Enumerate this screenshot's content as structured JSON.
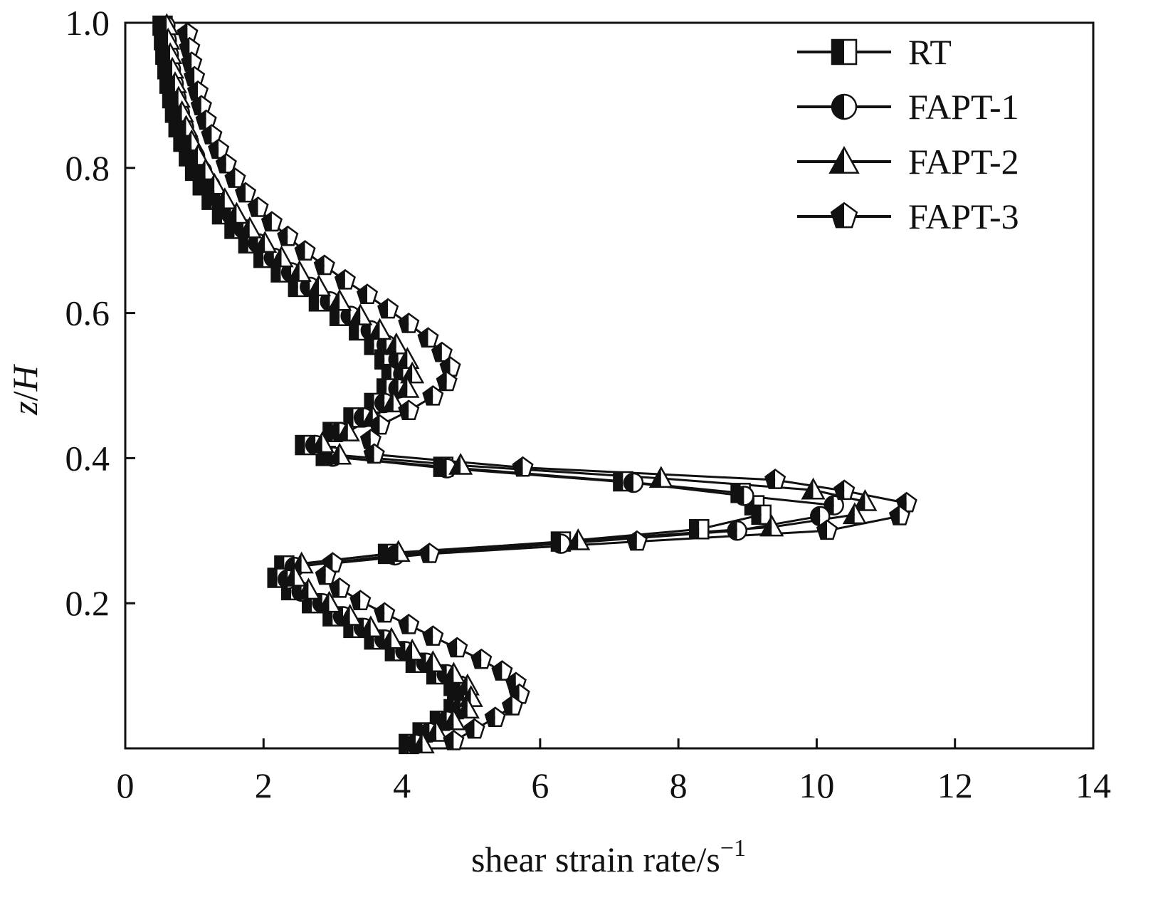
{
  "chart_data": {
    "type": "line",
    "title": "",
    "xlabel": "shear strain rate/s",
    "xlabel_superscript": "−1",
    "ylabel_italic_1": "z",
    "ylabel_sep": "/",
    "ylabel_italic_2": "H",
    "xlim": [
      0,
      14
    ],
    "ylim": [
      0,
      1.0
    ],
    "xticks": [
      0,
      2,
      4,
      6,
      8,
      10,
      12,
      14
    ],
    "xtick_labels": [
      "0",
      "2",
      "4",
      "6",
      "8",
      "10",
      "12",
      "14"
    ],
    "yticks": [
      0.2,
      0.4,
      0.6,
      0.8,
      1.0
    ],
    "ytick_labels": [
      "0.2",
      "0.4",
      "0.6",
      "0.8",
      "1.0"
    ],
    "grid": false,
    "legend_position": "top-right",
    "series": [
      {
        "name": "RT",
        "marker": "square",
        "points": [
          [
            0.54,
            0.996
          ],
          [
            0.56,
            0.976
          ],
          [
            0.58,
            0.956
          ],
          [
            0.61,
            0.936
          ],
          [
            0.64,
            0.916
          ],
          [
            0.68,
            0.896
          ],
          [
            0.72,
            0.876
          ],
          [
            0.77,
            0.856
          ],
          [
            0.84,
            0.836
          ],
          [
            0.92,
            0.816
          ],
          [
            1.01,
            0.796
          ],
          [
            1.12,
            0.776
          ],
          [
            1.25,
            0.756
          ],
          [
            1.4,
            0.736
          ],
          [
            1.58,
            0.716
          ],
          [
            1.78,
            0.696
          ],
          [
            2.0,
            0.676
          ],
          [
            2.25,
            0.656
          ],
          [
            2.5,
            0.636
          ],
          [
            2.8,
            0.616
          ],
          [
            3.1,
            0.596
          ],
          [
            3.38,
            0.576
          ],
          [
            3.6,
            0.556
          ],
          [
            3.75,
            0.536
          ],
          [
            3.85,
            0.516
          ],
          [
            3.78,
            0.496
          ],
          [
            3.6,
            0.476
          ],
          [
            3.3,
            0.456
          ],
          [
            3.0,
            0.436
          ],
          [
            2.6,
            0.418
          ],
          [
            2.9,
            0.403
          ],
          [
            4.6,
            0.388
          ],
          [
            7.2,
            0.368
          ],
          [
            8.9,
            0.352
          ],
          [
            9.1,
            0.335
          ],
          [
            9.2,
            0.322
          ],
          [
            8.3,
            0.302
          ],
          [
            6.3,
            0.285
          ],
          [
            3.8,
            0.268
          ],
          [
            2.3,
            0.252
          ],
          [
            2.2,
            0.235
          ],
          [
            2.4,
            0.218
          ],
          [
            2.7,
            0.2
          ],
          [
            3.0,
            0.182
          ],
          [
            3.3,
            0.166
          ],
          [
            3.6,
            0.15
          ],
          [
            3.9,
            0.134
          ],
          [
            4.2,
            0.118
          ],
          [
            4.5,
            0.102
          ],
          [
            4.75,
            0.086
          ],
          [
            4.8,
            0.07
          ],
          [
            4.75,
            0.054
          ],
          [
            4.55,
            0.038
          ],
          [
            4.3,
            0.022
          ],
          [
            4.1,
            0.006
          ]
        ]
      },
      {
        "name": "FAPT-1",
        "marker": "circle",
        "points": [
          [
            0.58,
            0.996
          ],
          [
            0.6,
            0.976
          ],
          [
            0.63,
            0.956
          ],
          [
            0.66,
            0.936
          ],
          [
            0.7,
            0.916
          ],
          [
            0.74,
            0.896
          ],
          [
            0.79,
            0.876
          ],
          [
            0.85,
            0.856
          ],
          [
            0.92,
            0.836
          ],
          [
            1.01,
            0.816
          ],
          [
            1.11,
            0.796
          ],
          [
            1.23,
            0.776
          ],
          [
            1.37,
            0.756
          ],
          [
            1.53,
            0.736
          ],
          [
            1.71,
            0.716
          ],
          [
            1.92,
            0.696
          ],
          [
            2.15,
            0.676
          ],
          [
            2.4,
            0.656
          ],
          [
            2.67,
            0.636
          ],
          [
            2.96,
            0.616
          ],
          [
            3.26,
            0.596
          ],
          [
            3.55,
            0.576
          ],
          [
            3.78,
            0.556
          ],
          [
            3.95,
            0.536
          ],
          [
            4.02,
            0.516
          ],
          [
            3.95,
            0.496
          ],
          [
            3.75,
            0.476
          ],
          [
            3.45,
            0.456
          ],
          [
            3.1,
            0.436
          ],
          [
            2.75,
            0.418
          ],
          [
            3.0,
            0.402
          ],
          [
            4.65,
            0.386
          ],
          [
            7.35,
            0.366
          ],
          [
            8.95,
            0.348
          ],
          [
            10.25,
            0.335
          ],
          [
            10.05,
            0.32
          ],
          [
            8.85,
            0.3
          ],
          [
            6.3,
            0.282
          ],
          [
            3.9,
            0.266
          ],
          [
            2.45,
            0.25
          ],
          [
            2.35,
            0.233
          ],
          [
            2.55,
            0.216
          ],
          [
            2.85,
            0.2
          ],
          [
            3.15,
            0.182
          ],
          [
            3.45,
            0.166
          ],
          [
            3.75,
            0.15
          ],
          [
            4.05,
            0.134
          ],
          [
            4.35,
            0.118
          ],
          [
            4.65,
            0.102
          ],
          [
            4.85,
            0.086
          ],
          [
            4.9,
            0.07
          ],
          [
            4.85,
            0.054
          ],
          [
            4.65,
            0.038
          ],
          [
            4.4,
            0.022
          ],
          [
            4.2,
            0.006
          ]
        ]
      },
      {
        "name": "FAPT-2",
        "marker": "triangle",
        "points": [
          [
            0.6,
            0.996
          ],
          [
            0.62,
            0.976
          ],
          [
            0.65,
            0.956
          ],
          [
            0.68,
            0.936
          ],
          [
            0.72,
            0.916
          ],
          [
            0.77,
            0.896
          ],
          [
            0.82,
            0.876
          ],
          [
            0.88,
            0.856
          ],
          [
            0.96,
            0.836
          ],
          [
            1.05,
            0.816
          ],
          [
            1.16,
            0.796
          ],
          [
            1.29,
            0.776
          ],
          [
            1.44,
            0.756
          ],
          [
            1.61,
            0.736
          ],
          [
            1.8,
            0.716
          ],
          [
            2.02,
            0.696
          ],
          [
            2.26,
            0.676
          ],
          [
            2.52,
            0.656
          ],
          [
            2.8,
            0.636
          ],
          [
            3.1,
            0.616
          ],
          [
            3.4,
            0.596
          ],
          [
            3.68,
            0.576
          ],
          [
            3.92,
            0.556
          ],
          [
            4.08,
            0.536
          ],
          [
            4.15,
            0.516
          ],
          [
            4.08,
            0.496
          ],
          [
            3.88,
            0.476
          ],
          [
            3.58,
            0.456
          ],
          [
            3.22,
            0.436
          ],
          [
            2.85,
            0.42
          ],
          [
            3.1,
            0.404
          ],
          [
            4.85,
            0.39
          ],
          [
            7.75,
            0.372
          ],
          [
            9.95,
            0.356
          ],
          [
            10.7,
            0.34
          ],
          [
            10.55,
            0.322
          ],
          [
            9.35,
            0.305
          ],
          [
            6.55,
            0.286
          ],
          [
            3.95,
            0.27
          ],
          [
            2.55,
            0.254
          ],
          [
            2.45,
            0.236
          ],
          [
            2.65,
            0.218
          ],
          [
            2.95,
            0.2
          ],
          [
            3.25,
            0.182
          ],
          [
            3.55,
            0.166
          ],
          [
            3.85,
            0.15
          ],
          [
            4.15,
            0.134
          ],
          [
            4.45,
            0.118
          ],
          [
            4.75,
            0.102
          ],
          [
            4.95,
            0.086
          ],
          [
            5.0,
            0.07
          ],
          [
            4.95,
            0.054
          ],
          [
            4.75,
            0.038
          ],
          [
            4.5,
            0.022
          ],
          [
            4.3,
            0.006
          ]
        ]
      },
      {
        "name": "FAPT-3",
        "marker": "pentagon",
        "points": [
          [
            0.9,
            0.985
          ],
          [
            0.93,
            0.965
          ],
          [
            0.96,
            0.945
          ],
          [
            1.0,
            0.925
          ],
          [
            1.05,
            0.905
          ],
          [
            1.1,
            0.885
          ],
          [
            1.17,
            0.865
          ],
          [
            1.25,
            0.845
          ],
          [
            1.35,
            0.825
          ],
          [
            1.46,
            0.805
          ],
          [
            1.59,
            0.785
          ],
          [
            1.74,
            0.765
          ],
          [
            1.92,
            0.745
          ],
          [
            2.12,
            0.725
          ],
          [
            2.35,
            0.705
          ],
          [
            2.6,
            0.685
          ],
          [
            2.88,
            0.665
          ],
          [
            3.18,
            0.645
          ],
          [
            3.5,
            0.625
          ],
          [
            3.8,
            0.605
          ],
          [
            4.1,
            0.585
          ],
          [
            4.38,
            0.565
          ],
          [
            4.58,
            0.545
          ],
          [
            4.7,
            0.525
          ],
          [
            4.65,
            0.505
          ],
          [
            4.45,
            0.485
          ],
          [
            4.1,
            0.465
          ],
          [
            3.68,
            0.445
          ],
          [
            3.55,
            0.425
          ],
          [
            3.6,
            0.405
          ],
          [
            5.75,
            0.387
          ],
          [
            9.4,
            0.37
          ],
          [
            10.4,
            0.355
          ],
          [
            11.3,
            0.338
          ],
          [
            11.2,
            0.32
          ],
          [
            10.15,
            0.3
          ],
          [
            7.4,
            0.285
          ],
          [
            4.4,
            0.268
          ],
          [
            3.0,
            0.255
          ],
          [
            2.9,
            0.238
          ],
          [
            3.1,
            0.22
          ],
          [
            3.4,
            0.203
          ],
          [
            3.75,
            0.186
          ],
          [
            4.1,
            0.17
          ],
          [
            4.45,
            0.154
          ],
          [
            4.8,
            0.138
          ],
          [
            5.15,
            0.122
          ],
          [
            5.45,
            0.106
          ],
          [
            5.65,
            0.09
          ],
          [
            5.7,
            0.074
          ],
          [
            5.6,
            0.058
          ],
          [
            5.35,
            0.042
          ],
          [
            5.05,
            0.026
          ],
          [
            4.75,
            0.01
          ]
        ]
      }
    ]
  }
}
